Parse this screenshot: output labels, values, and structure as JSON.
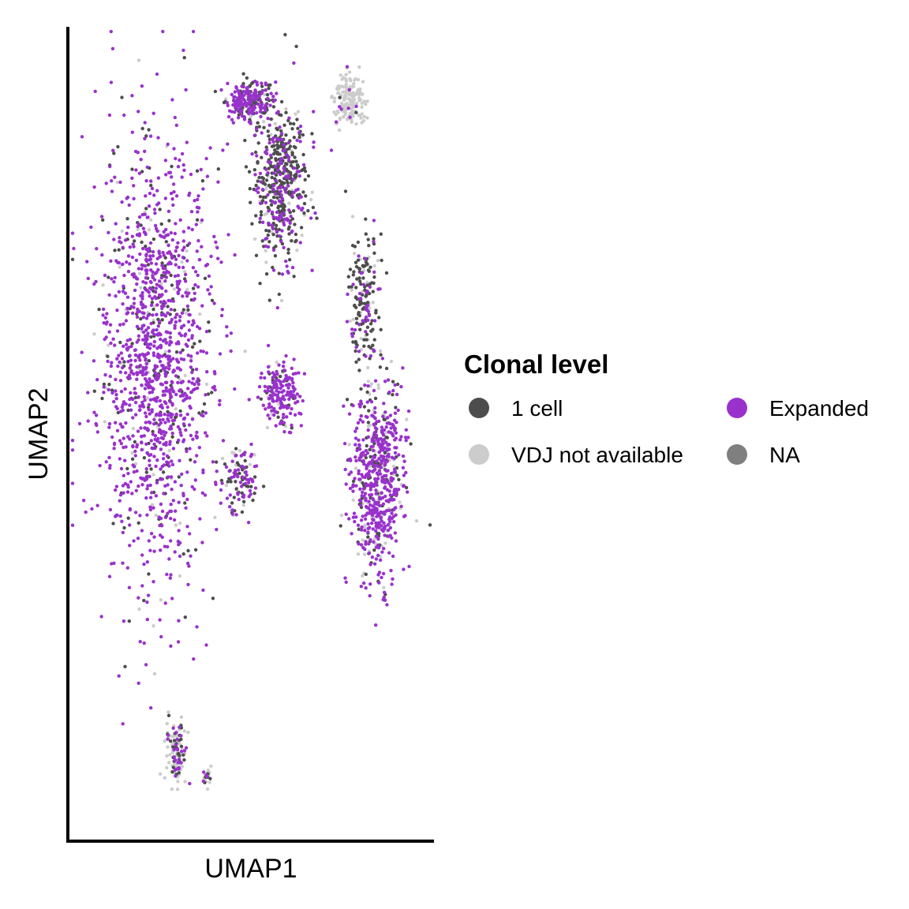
{
  "chart_data": {
    "type": "scatter",
    "title": "",
    "xlabel": "UMAP1",
    "ylabel": "UMAP2",
    "axis_ticks": false,
    "grid": false,
    "legend": {
      "title": "Clonal level",
      "placement": "right",
      "entries": [
        {
          "label": "1 cell",
          "color": "#4d4d4d"
        },
        {
          "label": "VDJ not available",
          "color": "#cccccc"
        },
        {
          "label": "Expanded",
          "color": "#9932cc"
        },
        {
          "label": "NA",
          "color": "#7f7f7f"
        }
      ]
    },
    "clusters": [
      {
        "name": "left-large",
        "cx": 0.22,
        "cy": 0.6,
        "sx": 0.15,
        "sy": 0.26,
        "n": 1400,
        "mix": {
          "Expanded": 0.8,
          "1 cell": 0.14,
          "VDJ not available": 0.06
        }
      },
      {
        "name": "top-stem",
        "cx": 0.58,
        "cy": 0.83,
        "sx": 0.07,
        "sy": 0.1,
        "n": 500,
        "mix": {
          "Expanded": 0.3,
          "1 cell": 0.6,
          "VDJ not available": 0.1
        }
      },
      {
        "name": "top-knob",
        "cx": 0.49,
        "cy": 0.94,
        "sx": 0.06,
        "sy": 0.025,
        "n": 220,
        "mix": {
          "Expanded": 0.65,
          "1 cell": 0.3,
          "VDJ not available": 0.05
        }
      },
      {
        "name": "top-right-gray",
        "cx": 0.78,
        "cy": 0.94,
        "sx": 0.04,
        "sy": 0.03,
        "n": 160,
        "mix": {
          "VDJ not available": 0.92,
          "Expanded": 0.05,
          "1 cell": 0.03
        }
      },
      {
        "name": "right-arm",
        "cx": 0.82,
        "cy": 0.68,
        "sx": 0.04,
        "sy": 0.08,
        "n": 180,
        "mix": {
          "1 cell": 0.65,
          "Expanded": 0.2,
          "VDJ not available": 0.15
        }
      },
      {
        "name": "right-lower",
        "cx": 0.86,
        "cy": 0.44,
        "sx": 0.07,
        "sy": 0.12,
        "n": 650,
        "mix": {
          "Expanded": 0.7,
          "1 cell": 0.15,
          "VDJ not available": 0.15
        }
      },
      {
        "name": "center-small",
        "cx": 0.58,
        "cy": 0.55,
        "sx": 0.05,
        "sy": 0.04,
        "n": 180,
        "mix": {
          "Expanded": 0.8,
          "1 cell": 0.15,
          "VDJ not available": 0.05
        }
      },
      {
        "name": "center-lower",
        "cx": 0.46,
        "cy": 0.44,
        "sx": 0.05,
        "sy": 0.04,
        "n": 110,
        "mix": {
          "Expanded": 0.45,
          "1 cell": 0.4,
          "VDJ not available": 0.15
        }
      },
      {
        "name": "bottom-a",
        "cx": 0.28,
        "cy": 0.08,
        "sx": 0.025,
        "sy": 0.035,
        "n": 130,
        "mix": {
          "VDJ not available": 0.55,
          "1 cell": 0.25,
          "Expanded": 0.2
        }
      },
      {
        "name": "bottom-b",
        "cx": 0.37,
        "cy": 0.05,
        "sx": 0.012,
        "sy": 0.01,
        "n": 35,
        "mix": {
          "VDJ not available": 0.7,
          "1 cell": 0.15,
          "Expanded": 0.15
        }
      }
    ]
  }
}
